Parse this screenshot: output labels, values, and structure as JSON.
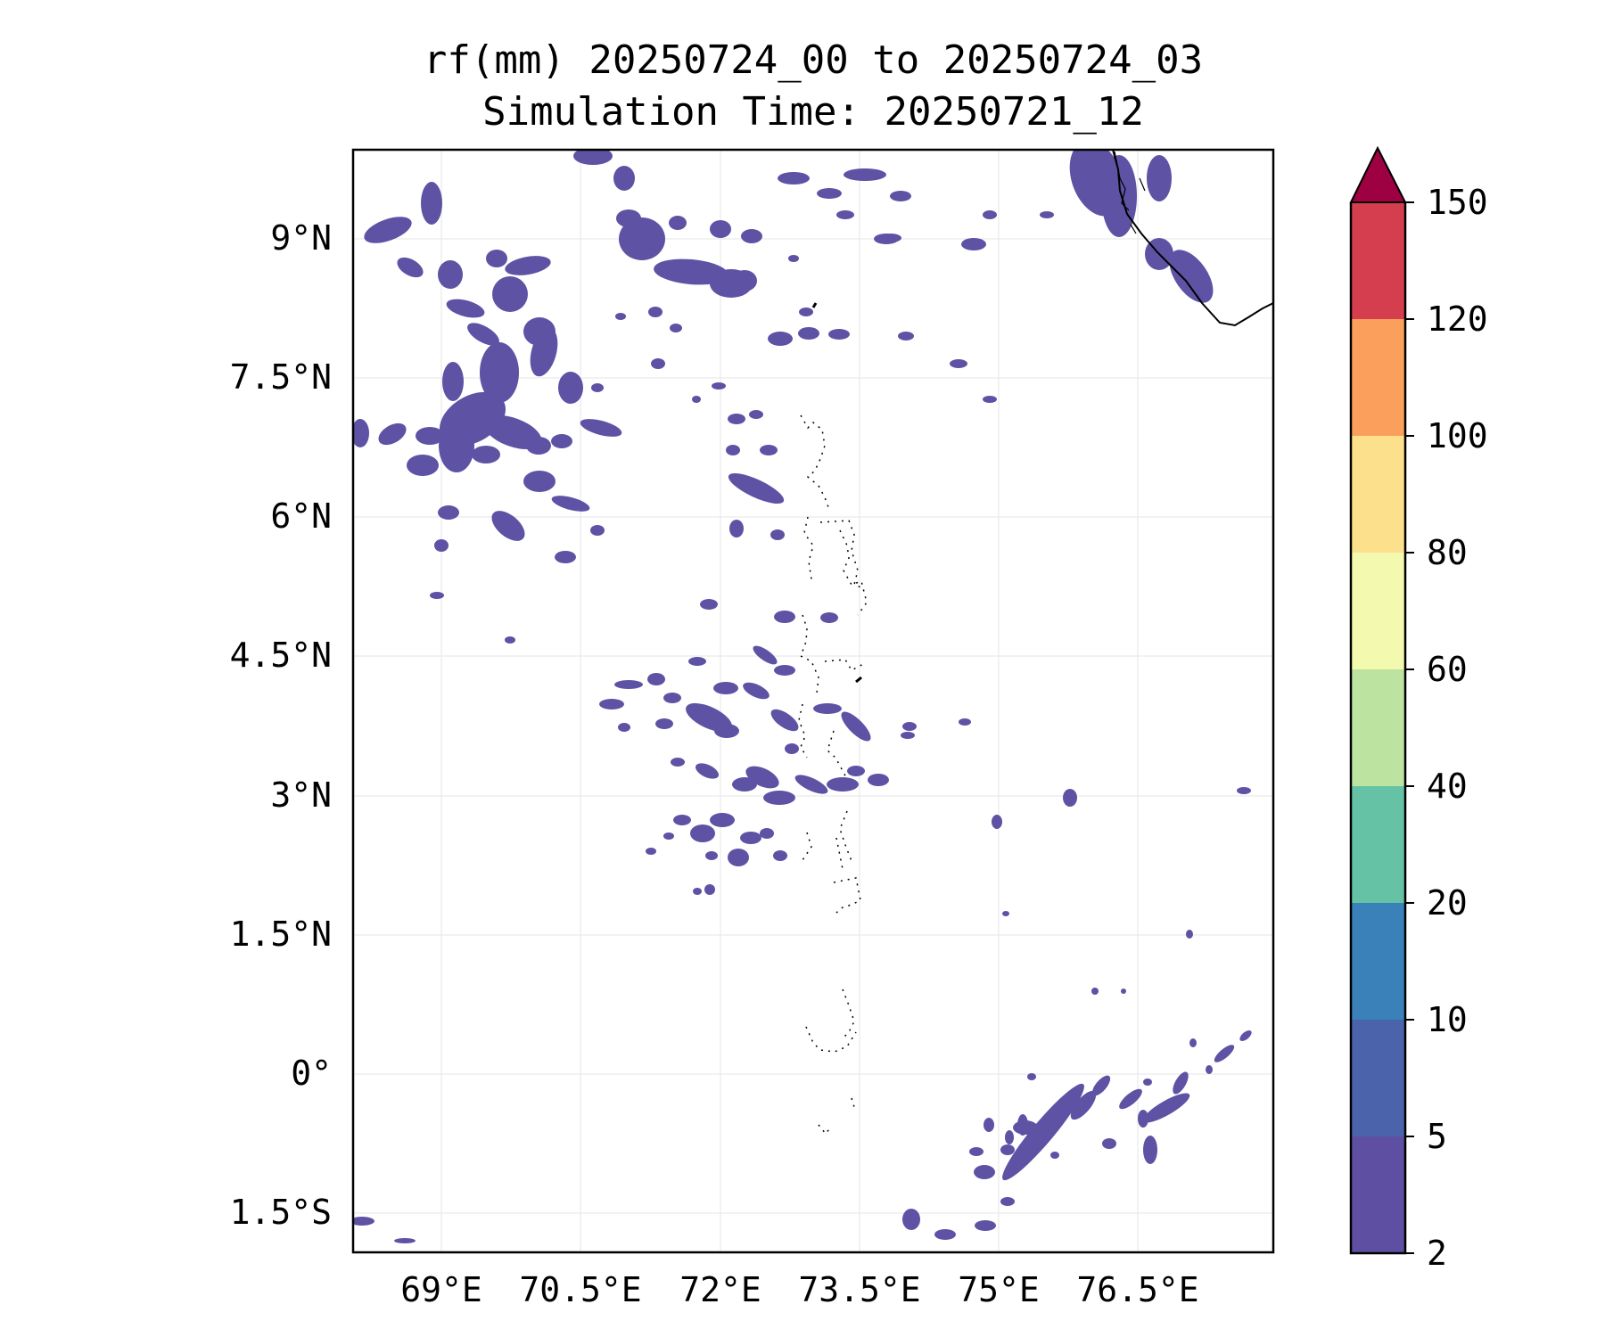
{
  "title": {
    "line1": "rf(mm) 20250724_00 to 20250724_03",
    "line2": "Simulation Time: 20250721_12"
  },
  "map": {
    "lat_ticks": [
      "9°N",
      "7.5°N",
      "6°N",
      "4.5°N",
      "3°N",
      "1.5°N",
      "0°",
      "1.5°S"
    ],
    "lon_ticks": [
      "69°E",
      "70.5°E",
      "72°E",
      "73.5°E",
      "75°E",
      "76.5°E"
    ],
    "lat_range": [
      -1.9,
      9.95
    ],
    "lon_range": [
      68.05,
      77.95
    ],
    "grid": true,
    "rain_color": "#5e52a4",
    "coastline_color": "#000000"
  },
  "colorbar": {
    "levels": [
      "2",
      "5",
      "10",
      "20",
      "40",
      "60",
      "80",
      "100",
      "120",
      "150"
    ],
    "colors": [
      "#5e4fa2",
      "#4a63ab",
      "#3a80b9",
      "#66c2a5",
      "#bde3a0",
      "#f3f9ae",
      "#fde08b",
      "#fba05c",
      "#d53e4f"
    ],
    "extend_color": "#9e0142",
    "extend": "max",
    "placement": "right"
  }
}
